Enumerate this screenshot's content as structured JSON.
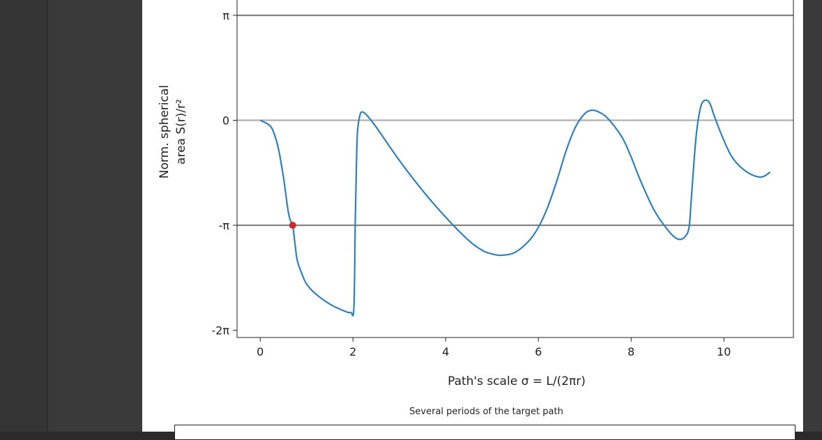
{
  "chart_data": {
    "type": "line",
    "xlabel": "Path's scale σ = L/(2πr)",
    "ylabel_line1": "Norm. spherical",
    "ylabel_line2": "area S(r)/r²",
    "xlim": [
      -0.5,
      11.5
    ],
    "ylim": [
      -6.5,
      3.6
    ],
    "x_ticks": [
      0,
      2,
      4,
      6,
      8,
      10
    ],
    "x_tick_labels": [
      "0",
      "2",
      "4",
      "6",
      "8",
      "10"
    ],
    "y_ticks": [
      3.14159,
      0,
      -3.14159,
      -6.28319
    ],
    "y_tick_labels": [
      "π",
      "0",
      "-π",
      "-2π"
    ],
    "reference_lines": [
      {
        "y": 3.14159,
        "color": "#808080"
      },
      {
        "y": 0,
        "color": "#b0b0b0"
      },
      {
        "y": -3.14159,
        "color": "#808080"
      }
    ],
    "series": [
      {
        "color": "#2f7fbf",
        "x": [
          0,
          0.2,
          0.3,
          0.4,
          0.5,
          0.55,
          0.6,
          0.65,
          0.7,
          0.75,
          0.8,
          0.9,
          1.0,
          1.2,
          1.5,
          1.8,
          1.95,
          2.02,
          2.05,
          2.08,
          2.1,
          2.15,
          2.2,
          2.3,
          2.5,
          3.0,
          3.5,
          4.0,
          4.5,
          4.8,
          5.0,
          5.2,
          5.5,
          5.8,
          6.0,
          6.2,
          6.4,
          6.6,
          6.8,
          7.0,
          7.15,
          7.3,
          7.5,
          7.8,
          8.0,
          8.2,
          8.5,
          8.8,
          9.0,
          9.15,
          9.25,
          9.3,
          9.4,
          9.5,
          9.6,
          9.7,
          9.8,
          10.0,
          10.2,
          10.5,
          10.8,
          11.0
        ],
        "y": [
          0,
          -0.15,
          -0.4,
          -0.9,
          -1.7,
          -2.2,
          -2.7,
          -3.0,
          -3.14,
          -3.7,
          -4.2,
          -4.6,
          -4.9,
          -5.2,
          -5.5,
          -5.7,
          -5.75,
          -5.6,
          -3.0,
          -1.0,
          -0.3,
          0.15,
          0.25,
          0.15,
          -0.2,
          -1.2,
          -2.1,
          -2.9,
          -3.6,
          -3.9,
          -4.0,
          -4.04,
          -3.95,
          -3.6,
          -3.2,
          -2.6,
          -1.8,
          -0.9,
          -0.2,
          0.2,
          0.3,
          0.25,
          0.05,
          -0.5,
          -1.1,
          -1.8,
          -2.7,
          -3.3,
          -3.55,
          -3.5,
          -3.2,
          -2.3,
          -0.5,
          0.4,
          0.6,
          0.5,
          0.1,
          -0.6,
          -1.15,
          -1.55,
          -1.7,
          -1.55
        ]
      }
    ],
    "marker": {
      "x": 0.7,
      "y": -3.14159,
      "color": "#d62728"
    },
    "caption": "Several periods of the target path"
  }
}
